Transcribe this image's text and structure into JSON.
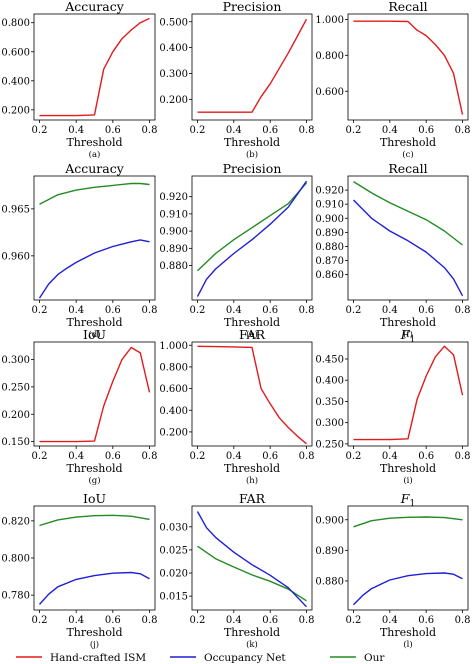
{
  "legend": [
    {
      "label": "Hand-crafted ISM",
      "color": "#e31a1c"
    },
    {
      "label": "Occupancy Net",
      "color": "#1f1fd6"
    },
    {
      "label": "Our",
      "color": "#238b23"
    }
  ],
  "chart_data": [
    {
      "type": "line",
      "title": "Accuracy",
      "xlabel": "Threshold",
      "caption": "(a)",
      "xlim": [
        0.17,
        0.83
      ],
      "ylim": [
        0.13,
        0.86
      ],
      "xticks": [
        0.2,
        0.4,
        0.6,
        0.8
      ],
      "xtick_labels": [
        "0.2",
        "0.4",
        "0.6",
        "0.8"
      ],
      "yticks": [
        0.2,
        0.4,
        0.6,
        0.8
      ],
      "ytick_labels": [
        "0.200",
        "0.400",
        "0.600",
        "0.800"
      ],
      "series": [
        {
          "color": "#e31a1c",
          "x": [
            0.2,
            0.3,
            0.4,
            0.5,
            0.55,
            0.6,
            0.65,
            0.7,
            0.75,
            0.8
          ],
          "y": [
            0.16,
            0.16,
            0.16,
            0.165,
            0.48,
            0.6,
            0.69,
            0.75,
            0.8,
            0.83
          ]
        }
      ]
    },
    {
      "type": "line",
      "title": "Precision",
      "xlabel": "Threshold",
      "caption": "(b)",
      "xlim": [
        0.17,
        0.83
      ],
      "ylim": [
        0.12,
        0.53
      ],
      "xticks": [
        0.2,
        0.4,
        0.6,
        0.8
      ],
      "xtick_labels": [
        "0.2",
        "0.4",
        "0.6",
        "0.8"
      ],
      "yticks": [
        0.2,
        0.3,
        0.4,
        0.5
      ],
      "ytick_labels": [
        "0.200",
        "0.300",
        "0.400",
        "0.500"
      ],
      "series": [
        {
          "color": "#e31a1c",
          "x": [
            0.2,
            0.3,
            0.4,
            0.5,
            0.55,
            0.6,
            0.65,
            0.7,
            0.75,
            0.8
          ],
          "y": [
            0.15,
            0.15,
            0.15,
            0.15,
            0.21,
            0.26,
            0.32,
            0.38,
            0.445,
            0.51
          ]
        }
      ]
    },
    {
      "type": "line",
      "title": "Recall",
      "xlabel": "Threshold",
      "caption": "(c)",
      "xlim": [
        0.17,
        0.83
      ],
      "ylim": [
        0.44,
        1.03
      ],
      "xticks": [
        0.2,
        0.4,
        0.6,
        0.8
      ],
      "xtick_labels": [
        "0.2",
        "0.4",
        "0.6",
        "0.8"
      ],
      "yticks": [
        0.6,
        0.8,
        1.0
      ],
      "ytick_labels": [
        "0.600",
        "0.800",
        "1.000"
      ],
      "series": [
        {
          "color": "#e31a1c",
          "x": [
            0.2,
            0.3,
            0.4,
            0.5,
            0.55,
            0.6,
            0.65,
            0.7,
            0.75,
            0.8
          ],
          "y": [
            0.99,
            0.99,
            0.99,
            0.988,
            0.94,
            0.91,
            0.86,
            0.8,
            0.7,
            0.47
          ]
        }
      ]
    },
    {
      "type": "line",
      "title": "Accuracy",
      "xlabel": "Threshold",
      "caption": "(d)",
      "xlim": [
        0.17,
        0.83
      ],
      "ylim": [
        0.9553,
        0.9685
      ],
      "xticks": [
        0.2,
        0.4,
        0.6,
        0.8
      ],
      "xtick_labels": [
        "0.2",
        "0.4",
        "0.6",
        "0.8"
      ],
      "yticks": [
        0.96,
        0.965
      ],
      "ytick_labels": [
        "0.960",
        "0.965"
      ],
      "series": [
        {
          "color": "#238b23",
          "x": [
            0.2,
            0.3,
            0.4,
            0.5,
            0.6,
            0.7,
            0.75,
            0.8
          ],
          "y": [
            0.9655,
            0.9665,
            0.967,
            0.9673,
            0.9675,
            0.9677,
            0.9677,
            0.9676
          ]
        },
        {
          "color": "#1f1fd6",
          "x": [
            0.2,
            0.25,
            0.3,
            0.35,
            0.4,
            0.5,
            0.6,
            0.7,
            0.75,
            0.8
          ],
          "y": [
            0.9555,
            0.957,
            0.958,
            0.9587,
            0.9593,
            0.9603,
            0.961,
            0.9615,
            0.9617,
            0.9615
          ]
        }
      ]
    },
    {
      "type": "line",
      "title": "Precision",
      "xlabel": "Threshold",
      "caption": "(e)",
      "xlim": [
        0.17,
        0.83
      ],
      "ylim": [
        0.86,
        0.932
      ],
      "xticks": [
        0.2,
        0.4,
        0.6,
        0.8
      ],
      "xtick_labels": [
        "0.2",
        "0.4",
        "0.6",
        "0.8"
      ],
      "yticks": [
        0.88,
        0.89,
        0.9,
        0.91,
        0.92
      ],
      "ytick_labels": [
        "0.880",
        "0.890",
        "0.900",
        "0.910",
        "0.920"
      ],
      "series": [
        {
          "color": "#238b23",
          "x": [
            0.2,
            0.3,
            0.4,
            0.5,
            0.6,
            0.7,
            0.8
          ],
          "y": [
            0.877,
            0.887,
            0.895,
            0.902,
            0.909,
            0.916,
            0.928
          ]
        },
        {
          "color": "#1f1fd6",
          "x": [
            0.2,
            0.25,
            0.3,
            0.4,
            0.5,
            0.6,
            0.7,
            0.8
          ],
          "y": [
            0.862,
            0.872,
            0.878,
            0.887,
            0.895,
            0.904,
            0.914,
            0.929
          ]
        }
      ]
    },
    {
      "type": "line",
      "title": "Recall",
      "xlabel": "Threshold",
      "caption": "(f)",
      "xlim": [
        0.17,
        0.83
      ],
      "ylim": [
        0.842,
        0.93
      ],
      "xticks": [
        0.2,
        0.4,
        0.6,
        0.8
      ],
      "xtick_labels": [
        "0.2",
        "0.4",
        "0.6",
        "0.8"
      ],
      "yticks": [
        0.86,
        0.87,
        0.88,
        0.89,
        0.9,
        0.91,
        0.92
      ],
      "ytick_labels": [
        "0.860",
        "0.870",
        "0.880",
        "0.890",
        "0.900",
        "0.910",
        "0.920"
      ],
      "series": [
        {
          "color": "#238b23",
          "x": [
            0.2,
            0.3,
            0.4,
            0.5,
            0.6,
            0.7,
            0.8
          ],
          "y": [
            0.926,
            0.918,
            0.911,
            0.905,
            0.899,
            0.891,
            0.881
          ]
        },
        {
          "color": "#1f1fd6",
          "x": [
            0.2,
            0.3,
            0.4,
            0.5,
            0.6,
            0.7,
            0.75,
            0.8
          ],
          "y": [
            0.913,
            0.9,
            0.891,
            0.884,
            0.876,
            0.865,
            0.857,
            0.845
          ]
        }
      ]
    },
    {
      "type": "line",
      "title": "IoU",
      "xlabel": "Threshold",
      "caption": "(g)",
      "xlim": [
        0.17,
        0.83
      ],
      "ylim": [
        0.142,
        0.332
      ],
      "xticks": [
        0.2,
        0.4,
        0.6,
        0.8
      ],
      "xtick_labels": [
        "0.2",
        "0.4",
        "0.6",
        "0.8"
      ],
      "yticks": [
        0.15,
        0.2,
        0.25,
        0.3
      ],
      "ytick_labels": [
        "0.150",
        "0.200",
        "0.250",
        "0.300"
      ],
      "series": [
        {
          "color": "#e31a1c",
          "x": [
            0.2,
            0.3,
            0.4,
            0.5,
            0.55,
            0.6,
            0.65,
            0.7,
            0.75,
            0.8
          ],
          "y": [
            0.15,
            0.15,
            0.15,
            0.151,
            0.215,
            0.26,
            0.3,
            0.322,
            0.312,
            0.24
          ]
        }
      ]
    },
    {
      "type": "line",
      "title": "FAR",
      "xlabel": "Threshold",
      "caption": "(h)",
      "xlim": [
        0.17,
        0.83
      ],
      "ylim": [
        0.07,
        1.03
      ],
      "xticks": [
        0.2,
        0.4,
        0.6,
        0.8
      ],
      "xtick_labels": [
        "0.2",
        "0.4",
        "0.6",
        "0.8"
      ],
      "yticks": [
        0.2,
        0.4,
        0.6,
        0.8,
        1.0
      ],
      "ytick_labels": [
        "0.200",
        "0.400",
        "0.600",
        "0.800",
        "1.000"
      ],
      "series": [
        {
          "color": "#e31a1c",
          "x": [
            0.2,
            0.3,
            0.4,
            0.5,
            0.55,
            0.6,
            0.65,
            0.7,
            0.75,
            0.8
          ],
          "y": [
            0.99,
            0.988,
            0.985,
            0.98,
            0.6,
            0.46,
            0.33,
            0.24,
            0.16,
            0.09
          ]
        }
      ]
    },
    {
      "type": "line",
      "title": "F1",
      "title_main": "F",
      "title_sub": "1",
      "xlabel": "Threshold",
      "caption": "(i)",
      "xlim": [
        0.17,
        0.83
      ],
      "ylim": [
        0.245,
        0.49
      ],
      "xticks": [
        0.2,
        0.4,
        0.6,
        0.8
      ],
      "xtick_labels": [
        "0.2",
        "0.4",
        "0.6",
        "0.8"
      ],
      "yticks": [
        0.25,
        0.3,
        0.35,
        0.4,
        0.45
      ],
      "ytick_labels": [
        "0.250",
        "0.300",
        "0.350",
        "0.400",
        "0.450"
      ],
      "series": [
        {
          "color": "#e31a1c",
          "x": [
            0.2,
            0.3,
            0.4,
            0.5,
            0.55,
            0.6,
            0.65,
            0.7,
            0.75,
            0.8
          ],
          "y": [
            0.26,
            0.26,
            0.26,
            0.262,
            0.355,
            0.41,
            0.455,
            0.48,
            0.46,
            0.365
          ]
        }
      ]
    },
    {
      "type": "line",
      "title": "IoU",
      "xlabel": "Threshold",
      "caption": "(j)",
      "xlim": [
        0.17,
        0.83
      ],
      "ylim": [
        0.772,
        0.828
      ],
      "xticks": [
        0.2,
        0.4,
        0.6,
        0.8
      ],
      "xtick_labels": [
        "0.2",
        "0.4",
        "0.6",
        "0.8"
      ],
      "yticks": [
        0.78,
        0.8,
        0.82
      ],
      "ytick_labels": [
        "0.780",
        "0.800",
        "0.820"
      ],
      "series": [
        {
          "color": "#238b23",
          "x": [
            0.2,
            0.3,
            0.4,
            0.5,
            0.6,
            0.7,
            0.8
          ],
          "y": [
            0.8175,
            0.8205,
            0.822,
            0.8228,
            0.823,
            0.8225,
            0.8208
          ]
        },
        {
          "color": "#1f1fd6",
          "x": [
            0.2,
            0.25,
            0.3,
            0.4,
            0.5,
            0.6,
            0.7,
            0.75,
            0.8
          ],
          "y": [
            0.775,
            0.7805,
            0.7845,
            0.7885,
            0.7905,
            0.7918,
            0.7922,
            0.7915,
            0.7888
          ]
        }
      ]
    },
    {
      "type": "line",
      "title": "FAR",
      "xlabel": "Threshold",
      "caption": "(k)",
      "xlim": [
        0.17,
        0.83
      ],
      "ylim": [
        0.012,
        0.0345
      ],
      "xticks": [
        0.2,
        0.4,
        0.6,
        0.8
      ],
      "xtick_labels": [
        "0.2",
        "0.4",
        "0.6",
        "0.8"
      ],
      "yticks": [
        0.015,
        0.02,
        0.025,
        0.03
      ],
      "ytick_labels": [
        "0.015",
        "0.020",
        "0.025",
        "0.030"
      ],
      "series": [
        {
          "color": "#238b23",
          "x": [
            0.2,
            0.3,
            0.4,
            0.5,
            0.6,
            0.7,
            0.8
          ],
          "y": [
            0.0258,
            0.0231,
            0.0213,
            0.0196,
            0.0182,
            0.0165,
            0.014
          ]
        },
        {
          "color": "#1f1fd6",
          "x": [
            0.2,
            0.25,
            0.3,
            0.4,
            0.5,
            0.6,
            0.7,
            0.8
          ],
          "y": [
            0.0333,
            0.0298,
            0.0277,
            0.0245,
            0.0218,
            0.0195,
            0.0168,
            0.0127
          ]
        }
      ]
    },
    {
      "type": "line",
      "title": "F1",
      "title_main": "F",
      "title_sub": "1",
      "xlabel": "Threshold",
      "caption": "(l)",
      "xlim": [
        0.17,
        0.83
      ],
      "ylim": [
        0.8705,
        0.9045
      ],
      "xticks": [
        0.2,
        0.4,
        0.6,
        0.8
      ],
      "xtick_labels": [
        "0.2",
        "0.4",
        "0.6",
        "0.8"
      ],
      "yticks": [
        0.88,
        0.89,
        0.9
      ],
      "ytick_labels": [
        "0.880",
        "0.890",
        "0.900"
      ],
      "series": [
        {
          "color": "#238b23",
          "x": [
            0.2,
            0.3,
            0.4,
            0.5,
            0.6,
            0.7,
            0.8
          ],
          "y": [
            0.8977,
            0.8997,
            0.9005,
            0.9008,
            0.9009,
            0.9007,
            0.9
          ]
        },
        {
          "color": "#1f1fd6",
          "x": [
            0.2,
            0.25,
            0.3,
            0.4,
            0.5,
            0.6,
            0.7,
            0.75,
            0.8
          ],
          "y": [
            0.8722,
            0.8752,
            0.8775,
            0.8803,
            0.8817,
            0.8824,
            0.8826,
            0.8822,
            0.8807
          ]
        }
      ]
    }
  ]
}
